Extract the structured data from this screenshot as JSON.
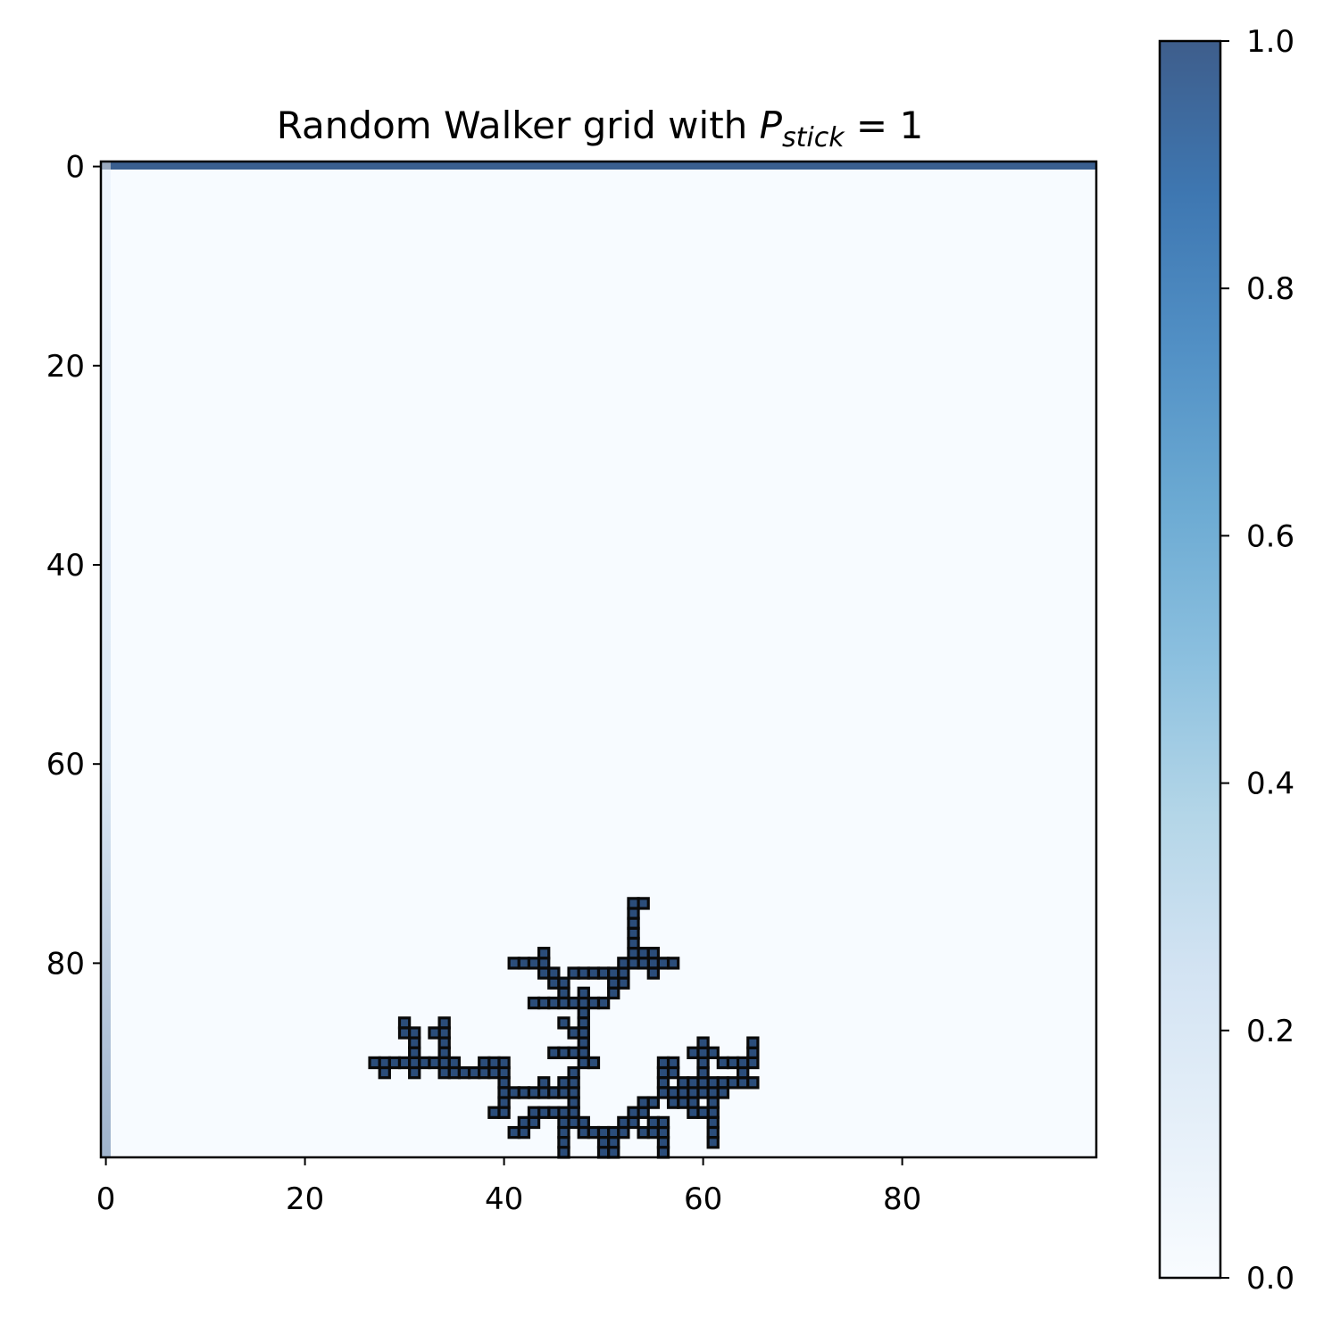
{
  "chart_data": {
    "type": "heatmap",
    "title": {
      "prefix": "Random Walker grid with ",
      "symbol": "P",
      "subscript": "stick",
      "suffix": " = 1"
    },
    "grid_size": [
      100,
      100
    ],
    "colormap": "Blues",
    "alpha": 0.75,
    "xlim": [
      -0.5,
      99.5
    ],
    "ylim": [
      99.5,
      -0.5
    ],
    "xticks": [
      0,
      20,
      40,
      60,
      80
    ],
    "yticks": [
      0,
      20,
      40,
      60,
      80
    ],
    "x_tick_labels": [
      "0",
      "20",
      "40",
      "60",
      "80"
    ],
    "y_tick_labels": [
      "0",
      "20",
      "40",
      "60",
      "80"
    ],
    "colorbar": {
      "range": [
        0,
        1
      ],
      "ticks": [
        0.0,
        0.2,
        0.4,
        0.6,
        0.8,
        1.0
      ],
      "tick_labels": [
        "0.0",
        "0.2",
        "0.4",
        "0.6",
        "0.8",
        "1.0"
      ],
      "color_low": "#f7fbff",
      "color_high": "#08306b"
    },
    "background_value": 0.0,
    "top_row_value": 1.0,
    "left_column_gradient": {
      "column": 0,
      "value_top": 0.05,
      "value_bottom": 0.35
    },
    "cluster_color": "#0a0a0a",
    "cluster_fill": "#2b4d7a",
    "cluster_cells": [
      [
        53,
        74
      ],
      [
        54,
        74
      ],
      [
        53,
        75
      ],
      [
        53,
        76
      ],
      [
        53,
        77
      ],
      [
        53,
        78
      ],
      [
        53,
        79
      ],
      [
        54,
        79
      ],
      [
        55,
        79
      ],
      [
        55,
        80
      ],
      [
        56,
        80
      ],
      [
        57,
        80
      ],
      [
        55,
        81
      ],
      [
        54,
        80
      ],
      [
        41,
        80
      ],
      [
        42,
        80
      ],
      [
        43,
        80
      ],
      [
        44,
        79
      ],
      [
        44,
        80
      ],
      [
        44,
        81
      ],
      [
        45,
        81
      ],
      [
        45,
        82
      ],
      [
        46,
        82
      ],
      [
        46,
        83
      ],
      [
        47,
        81
      ],
      [
        48,
        81
      ],
      [
        49,
        81
      ],
      [
        50,
        81
      ],
      [
        51,
        81
      ],
      [
        52,
        81
      ],
      [
        52,
        82
      ],
      [
        51,
        82
      ],
      [
        51,
        83
      ],
      [
        52,
        80
      ],
      [
        53,
        80
      ],
      [
        43,
        84
      ],
      [
        44,
        84
      ],
      [
        45,
        84
      ],
      [
        46,
        84
      ],
      [
        47,
        84
      ],
      [
        48,
        84
      ],
      [
        48,
        83
      ],
      [
        49,
        84
      ],
      [
        50,
        84
      ],
      [
        48,
        85
      ],
      [
        48,
        86
      ],
      [
        48,
        87
      ],
      [
        48,
        88
      ],
      [
        47,
        87
      ],
      [
        46,
        86
      ],
      [
        47,
        89
      ],
      [
        48,
        89
      ],
      [
        48,
        90
      ],
      [
        49,
        90
      ],
      [
        45,
        89
      ],
      [
        46,
        89
      ],
      [
        30,
        86
      ],
      [
        30,
        87
      ],
      [
        31,
        87
      ],
      [
        31,
        88
      ],
      [
        31,
        89
      ],
      [
        34,
        86
      ],
      [
        34,
        87
      ],
      [
        33,
        87
      ],
      [
        34,
        88
      ],
      [
        34,
        89
      ],
      [
        27,
        90
      ],
      [
        28,
        90
      ],
      [
        29,
        90
      ],
      [
        30,
        90
      ],
      [
        31,
        90
      ],
      [
        32,
        90
      ],
      [
        33,
        90
      ],
      [
        34,
        90
      ],
      [
        35,
        90
      ],
      [
        28,
        91
      ],
      [
        31,
        91
      ],
      [
        34,
        91
      ],
      [
        35,
        91
      ],
      [
        36,
        91
      ],
      [
        37,
        91
      ],
      [
        38,
        91
      ],
      [
        38,
        90
      ],
      [
        39,
        90
      ],
      [
        39,
        91
      ],
      [
        40,
        90
      ],
      [
        40,
        91
      ],
      [
        40,
        92
      ],
      [
        40,
        93
      ],
      [
        40,
        94
      ],
      [
        41,
        93
      ],
      [
        42,
        93
      ],
      [
        43,
        93
      ],
      [
        44,
        93
      ],
      [
        45,
        93
      ],
      [
        44,
        92
      ],
      [
        46,
        93
      ],
      [
        46,
        92
      ],
      [
        47,
        93
      ],
      [
        47,
        91
      ],
      [
        47,
        92
      ],
      [
        47,
        94
      ],
      [
        47,
        95
      ],
      [
        46,
        95
      ],
      [
        45,
        95
      ],
      [
        44,
        95
      ],
      [
        43,
        95
      ],
      [
        42,
        96
      ],
      [
        41,
        97
      ],
      [
        42,
        97
      ],
      [
        43,
        96
      ],
      [
        39,
        95
      ],
      [
        40,
        95
      ],
      [
        46,
        96
      ],
      [
        46,
        97
      ],
      [
        46,
        98
      ],
      [
        46,
        99
      ],
      [
        47,
        96
      ],
      [
        48,
        96
      ],
      [
        48,
        97
      ],
      [
        49,
        97
      ],
      [
        50,
        97
      ],
      [
        50,
        98
      ],
      [
        50,
        99
      ],
      [
        51,
        97
      ],
      [
        51,
        98
      ],
      [
        51,
        99
      ],
      [
        52,
        96
      ],
      [
        52,
        97
      ],
      [
        53,
        96
      ],
      [
        53,
        95
      ],
      [
        54,
        95
      ],
      [
        54,
        97
      ],
      [
        55,
        97
      ],
      [
        56,
        97
      ],
      [
        56,
        96
      ],
      [
        55,
        96
      ],
      [
        56,
        98
      ],
      [
        56,
        99
      ],
      [
        54,
        94
      ],
      [
        55,
        94
      ],
      [
        56,
        90
      ],
      [
        57,
        90
      ],
      [
        56,
        91
      ],
      [
        56,
        92
      ],
      [
        56,
        93
      ],
      [
        57,
        93
      ],
      [
        58,
        93
      ],
      [
        59,
        93
      ],
      [
        60,
        93
      ],
      [
        61,
        93
      ],
      [
        61,
        94
      ],
      [
        61,
        95
      ],
      [
        61,
        96
      ],
      [
        61,
        97
      ],
      [
        61,
        98
      ],
      [
        58,
        92
      ],
      [
        59,
        92
      ],
      [
        60,
        92
      ],
      [
        61,
        92
      ],
      [
        62,
        92
      ],
      [
        63,
        92
      ],
      [
        64,
        92
      ],
      [
        65,
        92
      ],
      [
        60,
        91
      ],
      [
        60,
        90
      ],
      [
        59,
        89
      ],
      [
        60,
        89
      ],
      [
        61,
        89
      ],
      [
        60,
        88
      ],
      [
        62,
        90
      ],
      [
        63,
        90
      ],
      [
        64,
        90
      ],
      [
        64,
        91
      ],
      [
        65,
        90
      ],
      [
        65,
        89
      ],
      [
        65,
        88
      ],
      [
        62,
        93
      ],
      [
        58,
        94
      ],
      [
        59,
        94
      ],
      [
        59,
        95
      ],
      [
        60,
        95
      ],
      [
        57,
        91
      ],
      [
        57,
        94
      ]
    ]
  }
}
